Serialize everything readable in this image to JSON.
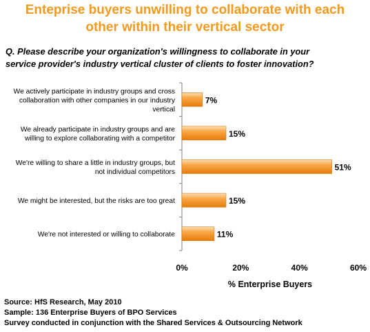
{
  "title_lines": [
    "Enteprise buyers unwilling to collaborate with each",
    "other within their vertical sector"
  ],
  "question_lines": [
    "Q. Please describe your organization's willingness to collaborate in your",
    "service provider's industry vertical cluster of clients to foster innovation?"
  ],
  "chart_data": {
    "type": "bar",
    "orientation": "horizontal",
    "categories": [
      [
        "We actively participate in industry groups and cross",
        "collaboration with other companies in our industry",
        "vertical"
      ],
      [
        "We already participate in industry groups and are",
        "willing to explore collaborating with a competitor"
      ],
      [
        "We're willing to share a little in industry groups, but",
        "not individual competitors"
      ],
      [
        "We might be interested, but the risks are too great"
      ],
      [
        "We're not interested or willing to collaborate"
      ]
    ],
    "values": [
      7,
      15,
      51,
      15,
      11
    ],
    "data_labels": [
      "7%",
      "15%",
      "51%",
      "15%",
      "11%"
    ],
    "xlim": [
      0,
      60
    ],
    "xticks": [
      0,
      20,
      40,
      60
    ],
    "xtick_labels": [
      "0%",
      "20%",
      "40%",
      "60%"
    ],
    "xlabel": "% Enterprise Buyers",
    "grid": false,
    "bar_color": "#f7941d"
  },
  "footer": {
    "source": "Source:  HfS Research, May 2010",
    "sample": "Sample:  136 Enterprise Buyers of BPO Services",
    "note": "Survey conducted in conjunction with the Shared Services & Outsourcing Network"
  }
}
